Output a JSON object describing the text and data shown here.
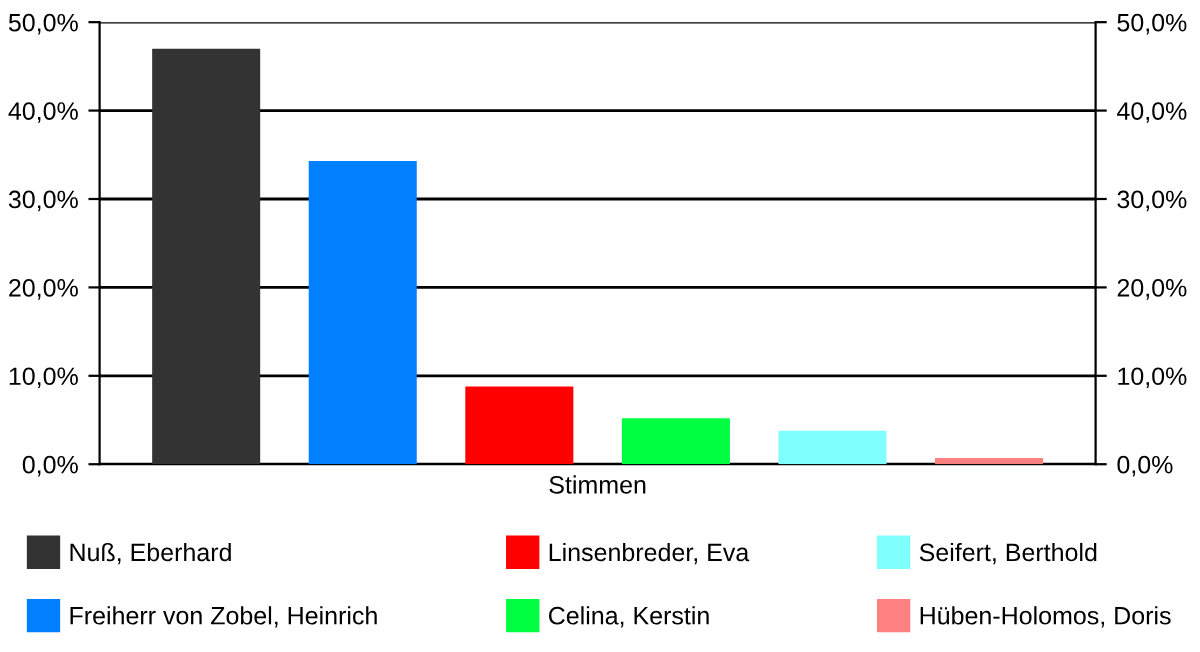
{
  "chart_data": {
    "type": "bar",
    "categories": [
      "Stimmen"
    ],
    "series": [
      {
        "name": "Nuß, Eberhard",
        "color": "#333333",
        "values": [
          47.0
        ]
      },
      {
        "name": "Freiherr von Zobel, Heinrich",
        "color": "#0080ff",
        "values": [
          34.3
        ]
      },
      {
        "name": "Linsenbreder, Eva",
        "color": "#ff0000",
        "values": [
          8.8
        ]
      },
      {
        "name": "Celina, Kerstin",
        "color": "#00ff40",
        "values": [
          5.2
        ]
      },
      {
        "name": "Seifert, Berthold",
        "color": "#80ffff",
        "values": [
          3.8
        ]
      },
      {
        "name": "Hüben-Holomos, Doris",
        "color": "#ff8080",
        "values": [
          0.7
        ]
      }
    ],
    "ylim": [
      0,
      50
    ],
    "yticks": [
      {
        "value": 0,
        "label": "0,0%"
      },
      {
        "value": 10,
        "label": "10,0%"
      },
      {
        "value": 20,
        "label": "20,0%"
      },
      {
        "value": 30,
        "label": "30,0%"
      },
      {
        "value": 40,
        "label": "40,0%"
      },
      {
        "value": 50,
        "label": "50,0%"
      }
    ],
    "grid": "y",
    "legend": "bottom"
  }
}
